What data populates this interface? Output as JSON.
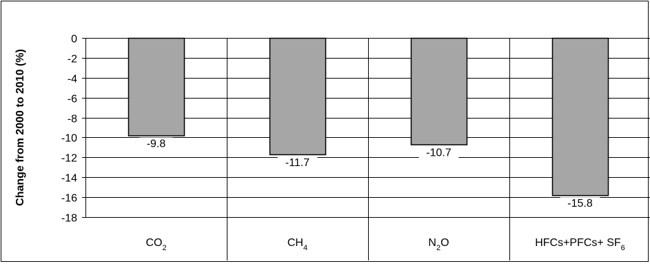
{
  "chart_data": {
    "type": "bar",
    "categories": [
      {
        "main": "CO",
        "sub": "2"
      },
      {
        "main": "CH",
        "sub": "4"
      },
      {
        "main": "N",
        "sub": "2",
        "tail": "O"
      },
      {
        "main": "HFCs+PFCs+ SF",
        "sub": "6"
      }
    ],
    "values": [
      -9.8,
      -11.7,
      -10.7,
      -15.8
    ],
    "data_labels": [
      "-9.8",
      "-11.7",
      "-10.7",
      "-15.8"
    ],
    "ylabel": "Change from 2000 to 2010 (%)",
    "ylim": [
      -18,
      0
    ],
    "yticks": [
      0,
      -2,
      -4,
      -6,
      -8,
      -10,
      -12,
      -14,
      -16,
      -18
    ],
    "ytick_labels": [
      "0",
      "-2",
      "-4",
      "-6",
      "-8",
      "-10",
      "-12",
      "-14",
      "-16",
      "-18"
    ],
    "grid": true,
    "legend": "none",
    "bar_color": "#a6a6a6"
  }
}
